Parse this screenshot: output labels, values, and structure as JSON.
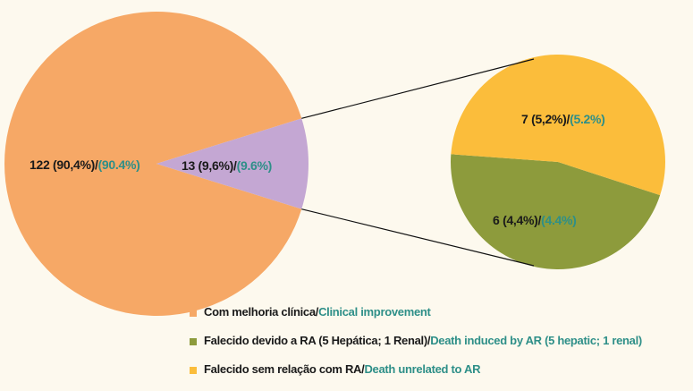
{
  "chart_data": {
    "type": "pie-of-pie",
    "main": {
      "values": [
        122,
        13
      ],
      "value_labels": [
        "122 (90,4%)/",
        "13 (9,6%)/"
      ],
      "value_labels_en": [
        "(90.4%)",
        "(9.6%)"
      ],
      "colors": [
        "#f6a866",
        "#c4a7d3"
      ],
      "categories": [
        "Com melhoria clínica/",
        null
      ],
      "categories_en": [
        "Clinical improvement",
        null
      ]
    },
    "secondary": {
      "values": [
        6,
        7
      ],
      "value_labels": [
        "6 (4,4%)/",
        "7 (5,2%)/"
      ],
      "value_labels_en": [
        "(4.4%)",
        "(5.2%)"
      ],
      "colors": [
        "#8d9b3c",
        "#fbbd3b"
      ],
      "categories": [
        "Falecido devido a RA (5 Hepática; 1 Renal)/",
        "Falecido sem relação com RA/"
      ],
      "categories_en": [
        "Death induced by AR (5 hepatic; 1 renal)",
        "Death unrelated to AR"
      ]
    }
  }
}
